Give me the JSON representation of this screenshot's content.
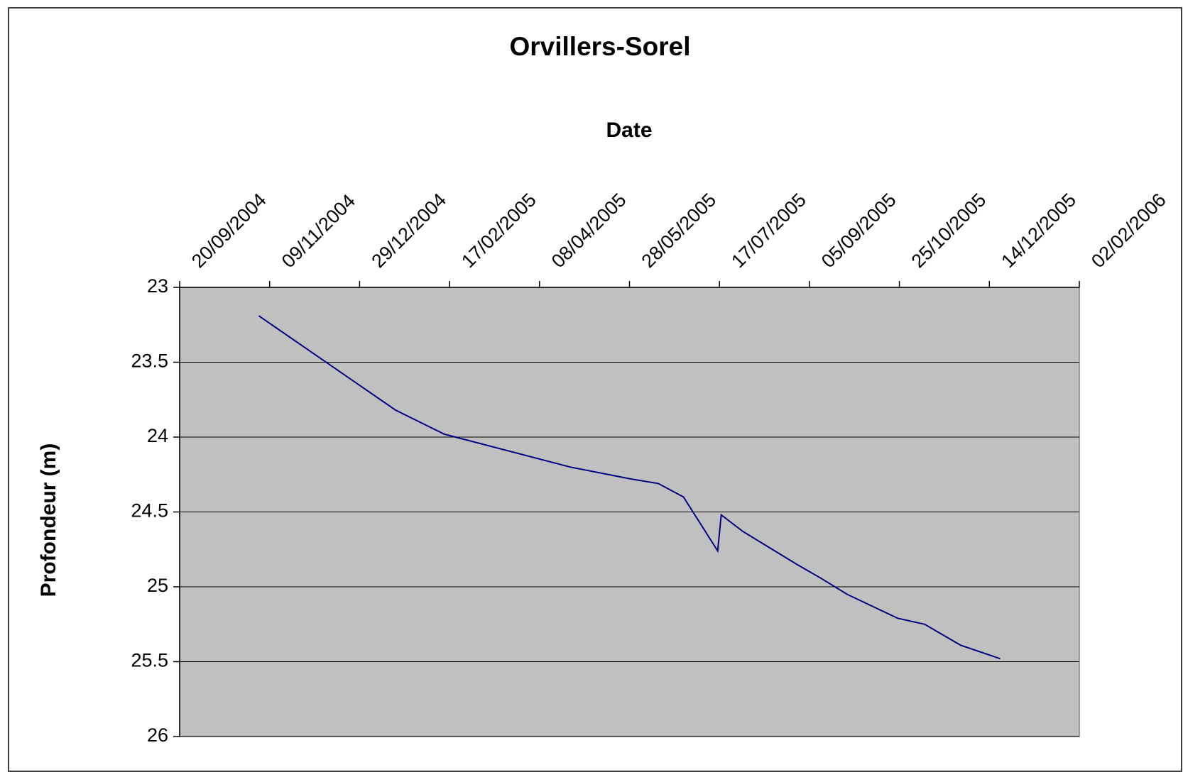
{
  "chart_data": {
    "type": "line",
    "title": "Orvillers-Sorel",
    "x_label": "Date",
    "y_label": "Profondeur (m)",
    "x": [
      "03/11/2004",
      "18/01/2005",
      "14/02/2005",
      "25/04/2005",
      "29/05/2005",
      "13/06/2005",
      "27/06/2005",
      "16/07/2005",
      "18/07/2005",
      "30/07/2005",
      "29/08/2005",
      "11/09/2005",
      "26/09/2005",
      "24/10/2005",
      "08/11/2005",
      "28/11/2005",
      "20/12/2005"
    ],
    "series": [
      {
        "name": "Profondeur",
        "color": "#000080",
        "values": [
          23.19,
          23.82,
          23.98,
          24.2,
          24.28,
          24.31,
          24.4,
          24.76,
          24.52,
          24.63,
          24.85,
          24.94,
          25.05,
          25.21,
          25.25,
          25.39,
          25.48
        ]
      }
    ],
    "xlim": [
      "20/09/2004",
      "02/02/2006"
    ],
    "xticks": [
      "20/09/2004",
      "09/11/2004",
      "29/12/2004",
      "17/02/2005",
      "08/04/2005",
      "28/05/2005",
      "17/07/2005",
      "05/09/2005",
      "25/10/2005",
      "14/12/2005",
      "02/02/2006"
    ],
    "x_axis_position": "top",
    "ylim": [
      23,
      26
    ],
    "yticks": [
      23,
      23.5,
      24,
      24.5,
      25,
      25.5,
      26
    ],
    "y_inverted": true,
    "grid": true,
    "plot_background": "#c0c0c0"
  }
}
